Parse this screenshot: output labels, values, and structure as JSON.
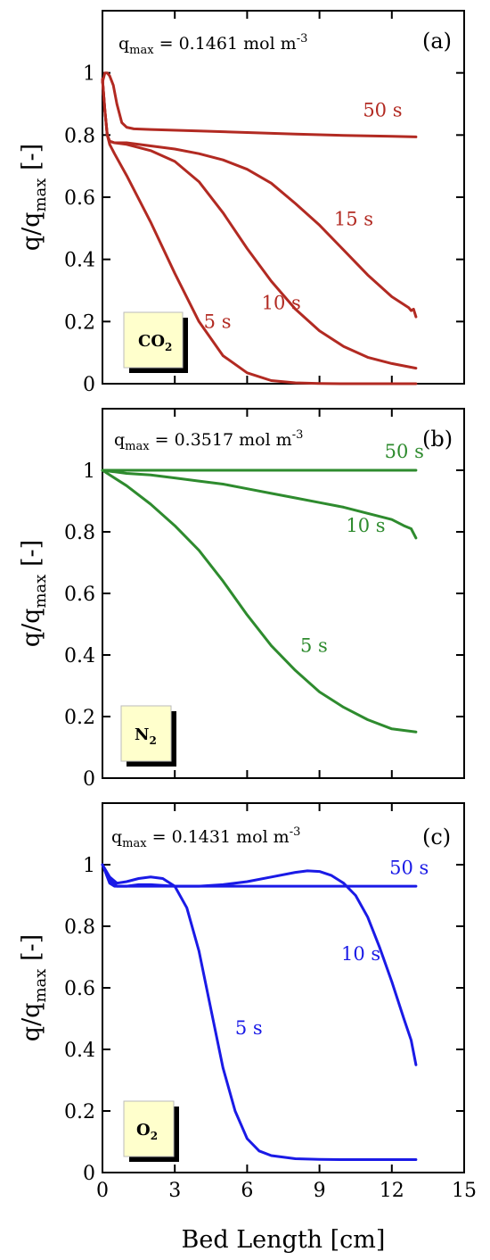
{
  "figure": {
    "xlabel": "Bed Length [cm]",
    "ylabel_main": "q/q",
    "ylabel_sub": "max",
    "ylabel_tail": " [-]"
  },
  "chart_data": [
    {
      "type": "line",
      "panel_label": "(a)",
      "annotation": {
        "q": "q",
        "sub": "max",
        "value": " = 0.1461 mol m",
        "sup": "-3"
      },
      "gas_label": {
        "main": "CO",
        "sub": "2"
      },
      "xlabel": "",
      "ylabel": "q/qmax [-]",
      "xlim": [
        0,
        15
      ],
      "ylim": [
        0,
        1.2
      ],
      "xticks": [
        0,
        3,
        6,
        9,
        12,
        15
      ],
      "yticks": [
        0,
        0.2,
        0.4,
        0.6,
        0.8,
        1
      ],
      "ytick_labels": [
        "0",
        "0.2",
        "0.4",
        "0.6",
        "0.8",
        "1"
      ],
      "color": "#b22a22",
      "series": [
        {
          "name": "50 s",
          "x": [
            0,
            0.1,
            0.2,
            0.3,
            0.45,
            0.6,
            0.8,
            1.0,
            1.3,
            2,
            4,
            6,
            8,
            10,
            12,
            13
          ],
          "y": [
            0.97,
            1.0,
            1.0,
            0.99,
            0.96,
            0.9,
            0.84,
            0.825,
            0.82,
            0.818,
            0.813,
            0.808,
            0.803,
            0.799,
            0.796,
            0.794
          ]
        },
        {
          "name": "15 s",
          "x": [
            0,
            0.1,
            0.2,
            0.3,
            0.5,
            1,
            2,
            3,
            4,
            5,
            6,
            7,
            8,
            9,
            10,
            11,
            12,
            12.5,
            12.7,
            12.8,
            12.9,
            13
          ],
          "y": [
            0.98,
            0.88,
            0.8,
            0.78,
            0.775,
            0.775,
            0.765,
            0.755,
            0.74,
            0.72,
            0.69,
            0.645,
            0.58,
            0.51,
            0.43,
            0.35,
            0.28,
            0.255,
            0.245,
            0.235,
            0.24,
            0.215
          ]
        },
        {
          "name": "10 s",
          "x": [
            0,
            0.1,
            0.2,
            0.3,
            0.5,
            1,
            2,
            3,
            4,
            5,
            6,
            7,
            8,
            9,
            10,
            11,
            12,
            13
          ],
          "y": [
            0.98,
            0.88,
            0.8,
            0.78,
            0.775,
            0.77,
            0.75,
            0.715,
            0.65,
            0.55,
            0.435,
            0.33,
            0.24,
            0.17,
            0.12,
            0.085,
            0.065,
            0.05
          ]
        },
        {
          "name": "5 s",
          "x": [
            0,
            0.1,
            0.2,
            0.3,
            0.5,
            1,
            2,
            3,
            4,
            5,
            6,
            7,
            8,
            9,
            10,
            11,
            12,
            13
          ],
          "y": [
            0.98,
            0.88,
            0.8,
            0.77,
            0.74,
            0.67,
            0.52,
            0.355,
            0.2,
            0.09,
            0.035,
            0.01,
            0.003,
            0.001,
            0.0,
            0.0,
            0.0,
            0.0
          ]
        }
      ],
      "labels": [
        {
          "text": "50 s",
          "x": 10.8,
          "y": 0.86
        },
        {
          "text": "15 s",
          "x": 9.6,
          "y": 0.51
        },
        {
          "text": "10 s",
          "x": 6.6,
          "y": 0.24
        },
        {
          "text": "5 s",
          "x": 4.2,
          "y": 0.18
        }
      ]
    },
    {
      "type": "line",
      "panel_label": "(b)",
      "annotation": {
        "q": "q",
        "sub": "max",
        "value": " = 0.3517 mol m",
        "sup": "-3"
      },
      "gas_label": {
        "main": "N",
        "sub": "2"
      },
      "xlabel": "",
      "ylabel": "q/qmax [-]",
      "xlim": [
        0,
        15
      ],
      "ylim": [
        0,
        1.2
      ],
      "xticks": [
        0,
        3,
        6,
        9,
        12,
        15
      ],
      "yticks": [
        0,
        0.2,
        0.4,
        0.6,
        0.8,
        1
      ],
      "ytick_labels": [
        "0",
        "0.2",
        "0.4",
        "0.6",
        "0.8",
        "1"
      ],
      "color": "#2e8b2e",
      "series": [
        {
          "name": "50 s",
          "x": [
            0,
            2,
            4,
            6,
            8,
            10,
            12,
            13
          ],
          "y": [
            1.0,
            1.0,
            1.0,
            1.0,
            1.0,
            1.0,
            1.0,
            1.0
          ]
        },
        {
          "name": "10 s",
          "x": [
            0,
            1,
            2,
            3,
            4,
            5,
            6,
            7,
            8,
            9,
            10,
            11,
            12,
            12.5,
            12.8,
            13
          ],
          "y": [
            1.0,
            0.99,
            0.985,
            0.975,
            0.965,
            0.955,
            0.94,
            0.925,
            0.91,
            0.895,
            0.88,
            0.86,
            0.84,
            0.82,
            0.81,
            0.78
          ]
        },
        {
          "name": "5 s",
          "x": [
            0,
            1,
            2,
            3,
            4,
            5,
            6,
            7,
            8,
            9,
            10,
            11,
            12,
            13
          ],
          "y": [
            1.0,
            0.95,
            0.89,
            0.82,
            0.74,
            0.64,
            0.53,
            0.43,
            0.35,
            0.28,
            0.23,
            0.19,
            0.16,
            0.15
          ]
        }
      ],
      "labels": [
        {
          "text": "50 s",
          "x": 11.7,
          "y": 1.04
        },
        {
          "text": "10 s",
          "x": 10.1,
          "y": 0.8
        },
        {
          "text": "5 s",
          "x": 8.2,
          "y": 0.41
        }
      ]
    },
    {
      "type": "line",
      "panel_label": "(c)",
      "annotation": {
        "q": "q",
        "sub": "max",
        "value": " = 0.1431 mol m",
        "sup": "-3"
      },
      "gas_label": {
        "main": "O",
        "sub": "2"
      },
      "xlabel": "Bed Length [cm]",
      "ylabel": "q/qmax [-]",
      "xlim": [
        0,
        15
      ],
      "ylim": [
        0,
        1.2
      ],
      "xticks": [
        0,
        3,
        6,
        9,
        12,
        15
      ],
      "yticks": [
        0,
        0.2,
        0.4,
        0.6,
        0.8,
        1
      ],
      "ytick_labels": [
        "0",
        "0.2",
        "0.4",
        "0.6",
        "0.8",
        "1"
      ],
      "color": "#1a1ae6",
      "series": [
        {
          "name": "50 s",
          "x": [
            0,
            0.15,
            0.3,
            0.5,
            0.8,
            1.2,
            2,
            4,
            6,
            8,
            10,
            12,
            13
          ],
          "y": [
            1.0,
            0.97,
            0.94,
            0.93,
            0.93,
            0.93,
            0.93,
            0.93,
            0.93,
            0.93,
            0.93,
            0.93,
            0.93
          ]
        },
        {
          "name": "10 s",
          "x": [
            0,
            0.3,
            0.6,
            1,
            1.5,
            2,
            3,
            4,
            5,
            6,
            7,
            8,
            8.5,
            9,
            9.5,
            10,
            10.5,
            11,
            11.5,
            12,
            12.5,
            12.8,
            13
          ],
          "y": [
            1.0,
            0.95,
            0.93,
            0.93,
            0.935,
            0.935,
            0.93,
            0.93,
            0.935,
            0.945,
            0.96,
            0.975,
            0.98,
            0.978,
            0.965,
            0.94,
            0.9,
            0.83,
            0.73,
            0.62,
            0.5,
            0.43,
            0.35
          ]
        },
        {
          "name": "5 s",
          "x": [
            0,
            0.3,
            0.6,
            1,
            1.5,
            2,
            2.5,
            3,
            3.5,
            4,
            4.5,
            5,
            5.5,
            6,
            6.5,
            7,
            8,
            9,
            10,
            11,
            12,
            13
          ],
          "y": [
            1.0,
            0.96,
            0.94,
            0.945,
            0.955,
            0.96,
            0.955,
            0.93,
            0.86,
            0.72,
            0.53,
            0.34,
            0.2,
            0.11,
            0.07,
            0.055,
            0.045,
            0.043,
            0.042,
            0.042,
            0.042,
            0.042
          ]
        }
      ],
      "labels": [
        {
          "text": "50 s",
          "x": 11.9,
          "y": 0.97
        },
        {
          "text": "10 s",
          "x": 9.9,
          "y": 0.69
        },
        {
          "text": "5 s",
          "x": 5.5,
          "y": 0.45
        }
      ]
    }
  ]
}
